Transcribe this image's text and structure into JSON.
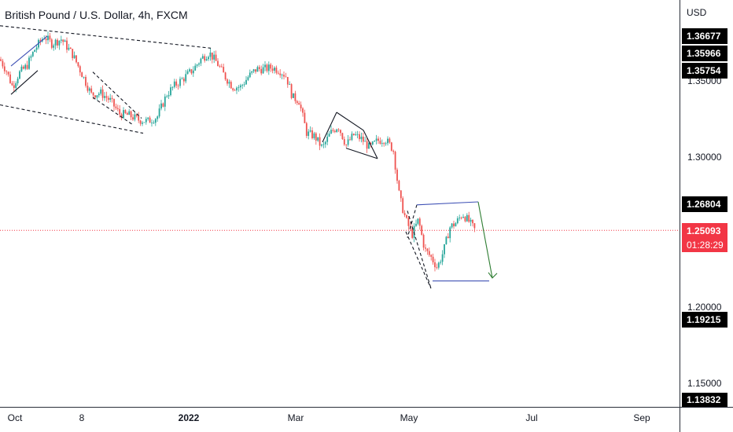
{
  "chart_title": "British Pound / U.S. Dollar, 4h, FXCM",
  "currency": "USD",
  "price_ticks": [
    "1.35000",
    "1.30000",
    "1.20000",
    "1.15000"
  ],
  "tags": {
    "t1": "1.36677",
    "t2": "1.35966",
    "t3": "1.35754",
    "t4": "1.26804",
    "current_price": "1.25093",
    "countdown": "01:28:29",
    "t5": "1.19215",
    "t6": "1.13832"
  },
  "time_labels": [
    "Oct",
    "8",
    "2022",
    "Mar",
    "May",
    "Jul",
    "Sep"
  ],
  "colors": {
    "up": "#26a69a",
    "down": "#ef5350",
    "current_line": "#f23645",
    "channel": "#3f51b5",
    "arrow": "#2e7d32"
  },
  "chart_data": {
    "type": "candlestick",
    "title": "British Pound / U.S. Dollar, 4h, FXCM",
    "yaxis": "USD",
    "ylim": [
      1.128,
      1.405
    ],
    "x_ticks": [
      "Oct",
      "8",
      "2022",
      "Mar",
      "May",
      "Jul",
      "Sep"
    ],
    "close_path": [
      [
        0,
        1.3655
      ],
      [
        8,
        1.358
      ],
      [
        16,
        1.347
      ],
      [
        24,
        1.356
      ],
      [
        34,
        1.361
      ],
      [
        44,
        1.372
      ],
      [
        56,
        1.381
      ],
      [
        66,
        1.376
      ],
      [
        78,
        1.379
      ],
      [
        92,
        1.369
      ],
      [
        104,
        1.356
      ],
      [
        116,
        1.342
      ],
      [
        128,
        1.343
      ],
      [
        140,
        1.338
      ],
      [
        152,
        1.329
      ],
      [
        164,
        1.328
      ],
      [
        176,
        1.325
      ],
      [
        188,
        1.324
      ],
      [
        200,
        1.327
      ],
      [
        212,
        1.342
      ],
      [
        222,
        1.348
      ],
      [
        234,
        1.353
      ],
      [
        246,
        1.359
      ],
      [
        256,
        1.366
      ],
      [
        266,
        1.37
      ],
      [
        276,
        1.363
      ],
      [
        286,
        1.354
      ],
      [
        296,
        1.347
      ],
      [
        306,
        1.347
      ],
      [
        316,
        1.354
      ],
      [
        326,
        1.359
      ],
      [
        336,
        1.359
      ],
      [
        346,
        1.36
      ],
      [
        356,
        1.358
      ],
      [
        364,
        1.354
      ],
      [
        372,
        1.34
      ],
      [
        380,
        1.338
      ],
      [
        390,
        1.316
      ],
      [
        400,
        1.314
      ],
      [
        410,
        1.306
      ],
      [
        420,
        1.316
      ],
      [
        430,
        1.321
      ],
      [
        440,
        1.308
      ],
      [
        450,
        1.315
      ],
      [
        460,
        1.312
      ],
      [
        470,
        1.306
      ],
      [
        480,
        1.311
      ],
      [
        490,
        1.312
      ],
      [
        500,
        1.305
      ],
      [
        508,
        1.273
      ],
      [
        516,
        1.258
      ],
      [
        524,
        1.248
      ],
      [
        532,
        1.258
      ],
      [
        540,
        1.238
      ],
      [
        548,
        1.233
      ],
      [
        556,
        1.226
      ],
      [
        564,
        1.237
      ],
      [
        572,
        1.253
      ],
      [
        580,
        1.256
      ],
      [
        588,
        1.262
      ],
      [
        596,
        1.257
      ],
      [
        604,
        1.2509
      ]
    ],
    "current_price": 1.25093,
    "price_labels": [
      1.36677,
      1.35966,
      1.35754,
      1.26804,
      1.25093,
      1.19215,
      1.13832
    ]
  }
}
